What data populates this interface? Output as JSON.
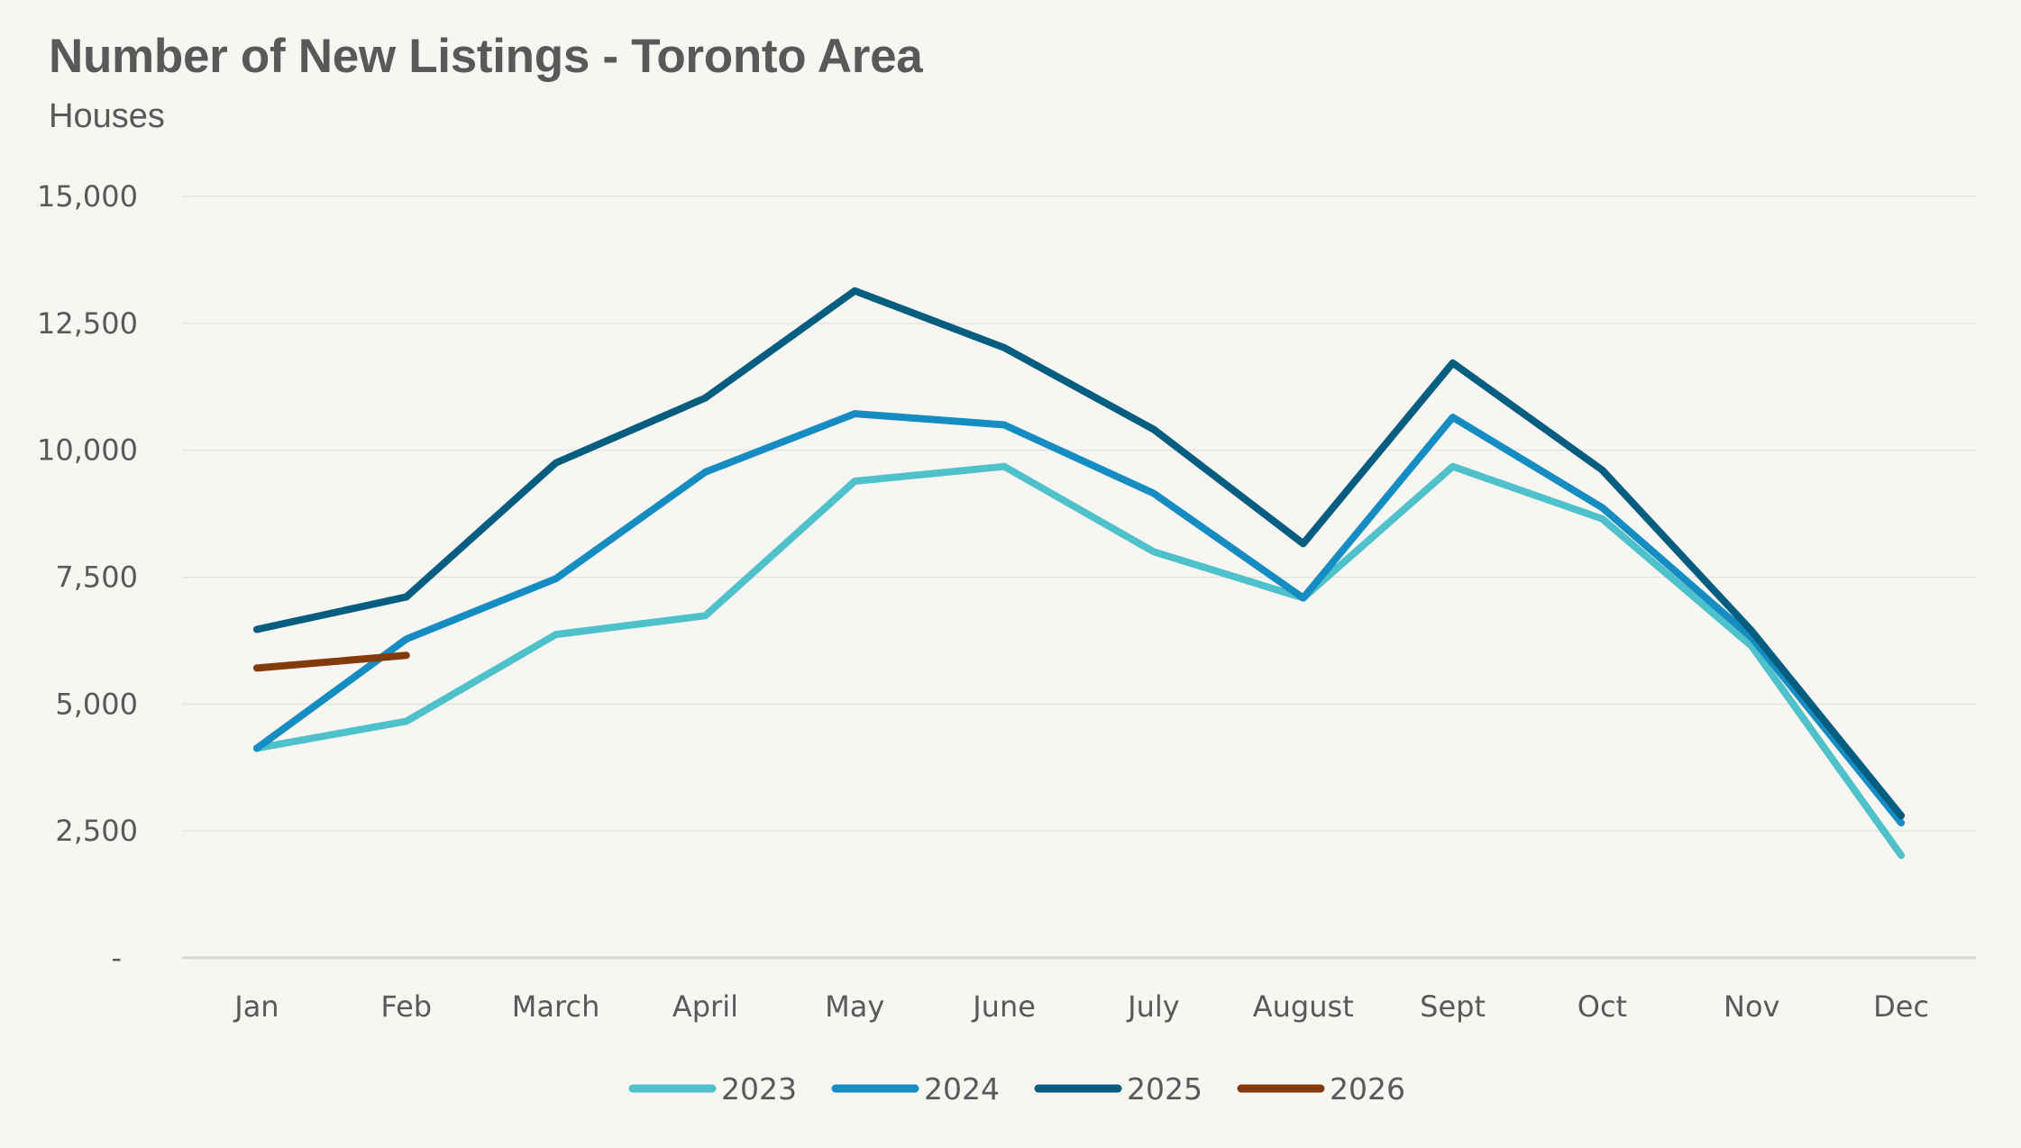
{
  "chart_data": {
    "type": "line",
    "title": "Number of New Listings - Toronto Area",
    "subtitle": "Houses",
    "xlabel": "",
    "ylabel": "",
    "categories": [
      "Jan",
      "Feb",
      "March",
      "April",
      "May",
      "June",
      "July",
      "August",
      "Sept",
      "Oct",
      "Nov",
      "Dec"
    ],
    "ylim": [
      0,
      15000
    ],
    "yticks": [
      0,
      2500,
      5000,
      7500,
      10000,
      12500,
      15000
    ],
    "ytick_labels": [
      "-",
      "2,500",
      "5,000",
      "7,500",
      "10,000",
      "12,500",
      "15,000"
    ],
    "grid": true,
    "legend_position": "bottom",
    "series": [
      {
        "name": "2023",
        "color": "#4fc1ca",
        "values": [
          4130,
          4660,
          6370,
          6740,
          9390,
          9680,
          8000,
          7090,
          9680,
          8650,
          6140,
          2020
        ]
      },
      {
        "name": "2024",
        "color": "#168dc2",
        "values": [
          4130,
          6280,
          7470,
          9570,
          10720,
          10500,
          9150,
          7090,
          10650,
          8870,
          6310,
          2660
        ]
      },
      {
        "name": "2025",
        "color": "#055e80",
        "values": [
          6470,
          7110,
          9750,
          11030,
          13140,
          12020,
          10410,
          8160,
          11720,
          9610,
          6440,
          2800
        ]
      },
      {
        "name": "2026",
        "color": "#843b0c",
        "values": [
          5710,
          5960,
          null,
          null,
          null,
          null,
          null,
          null,
          null,
          null,
          null,
          null
        ]
      }
    ]
  }
}
